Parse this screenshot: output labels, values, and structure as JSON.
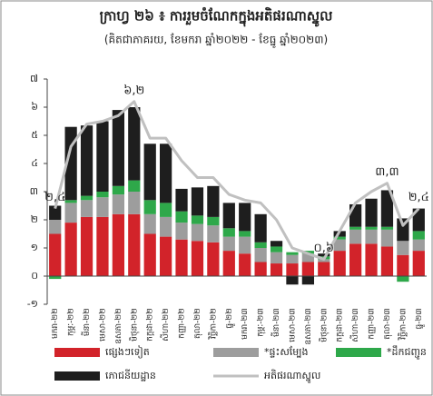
{
  "chart_data": {
    "type": "bar",
    "title": "ក្រាហ្វ ២៦ ៖ ការរួមចំណែកក្នុងអតិផរណាស្នូល",
    "subtitle": "(គិតជាភាគរយ, ខែមករា ឆ្នាំ២០២២ - ខែធ្នូ ឆ្នាំ២០២៣)",
    "stacked": true,
    "categories": [
      "មករា-២២",
      "កុម្ភៈ-២២",
      "មីនា-២២",
      "មេសា-២២",
      "ឧសភា-២២",
      "មិថុនា-២២",
      "កក្កដា-២២",
      "សីហា-២២",
      "កញ្ញា-២២",
      "តុលា-២២",
      "វិច្ឆិកា-២២",
      "ធ្នូ-២២",
      "មករា-២៣",
      "កុម្ភៈ-២៣",
      "មីនា-២៣",
      "មេសា-២៣",
      "ឧសភា-២៣",
      "មិថុនា-២៣",
      "កក្កដា-២៣",
      "សីហា-២៣",
      "កញ្ញា-២៣",
      "តុលា-២៣",
      "វិច្ឆិកា-២៣",
      "ធ្នូ-២៣"
    ],
    "series": [
      {
        "name": "ផ្សេងៗទៀត",
        "color": "#d2232a",
        "type": "bar",
        "values": [
          1.5,
          1.9,
          2.1,
          2.1,
          2.2,
          2.2,
          1.5,
          1.4,
          1.3,
          1.25,
          1.2,
          0.9,
          0.8,
          0.5,
          0.45,
          0.45,
          0.5,
          0.5,
          0.9,
          1.15,
          1.15,
          1.05,
          0.75,
          0.9
        ]
      },
      {
        "name": "*ផ្ទះសម្បែង",
        "color": "#9d9d9d",
        "type": "bar",
        "values": [
          0.5,
          0.7,
          0.6,
          0.7,
          0.7,
          0.8,
          0.7,
          0.7,
          0.6,
          0.6,
          0.6,
          0.5,
          0.6,
          0.5,
          0.4,
          0.3,
          0.3,
          0.1,
          0.4,
          0.5,
          0.5,
          0.6,
          0.5,
          0.4
        ]
      },
      {
        "name": "*ដឹកជញ្ជូន",
        "color": "#2ea84a",
        "type": "bar",
        "values": [
          -0.1,
          0.1,
          0.15,
          0.2,
          0.3,
          0.4,
          0.5,
          0.5,
          0.4,
          0.3,
          0.3,
          0.3,
          0.2,
          0.2,
          0.2,
          0.1,
          0.1,
          0.1,
          0.1,
          0.1,
          0.1,
          0.1,
          -0.2,
          0.3
        ]
      },
      {
        "name": "ភោជនីយដ្ឋាន",
        "color": "#1e1e1e",
        "type": "bar",
        "values": [
          0.5,
          2.6,
          2.5,
          2.5,
          2.7,
          2.6,
          2.0,
          2.1,
          0.8,
          1.0,
          1.1,
          0.9,
          1.0,
          1.0,
          0.2,
          -0.3,
          -0.3,
          0.1,
          0.2,
          0.8,
          1.0,
          1.3,
          0.8,
          0.8
        ]
      },
      {
        "name": "អតិផរណាស្នូល",
        "color": "#c0c0c0",
        "type": "line",
        "values": [
          2.4,
          4.6,
          5.4,
          5.5,
          5.7,
          6.2,
          4.9,
          4.9,
          4.1,
          3.5,
          3.5,
          2.9,
          2.7,
          2.6,
          2.0,
          1.0,
          0.8,
          0.6,
          1.6,
          2.6,
          3.0,
          3.3,
          1.8,
          2.4
        ],
        "value_labels": [
          "២,៤",
          null,
          null,
          null,
          null,
          "៦,២",
          null,
          null,
          null,
          null,
          null,
          null,
          null,
          null,
          null,
          null,
          null,
          "០,៦",
          null,
          null,
          null,
          "៣,៣",
          null,
          "២,៤"
        ]
      }
    ],
    "ylim": [
      -1,
      7
    ],
    "yticks": [
      {
        "value": -1,
        "label": "-១"
      },
      {
        "value": 0,
        "label": "០"
      },
      {
        "value": 1,
        "label": "១"
      },
      {
        "value": 2,
        "label": "២"
      },
      {
        "value": 3,
        "label": "៣"
      },
      {
        "value": 4,
        "label": "៤"
      },
      {
        "value": 5,
        "label": "៥"
      },
      {
        "value": 6,
        "label": "៦"
      },
      {
        "value": 7,
        "label": "៧"
      }
    ],
    "grid": false,
    "legend": "bottom"
  }
}
